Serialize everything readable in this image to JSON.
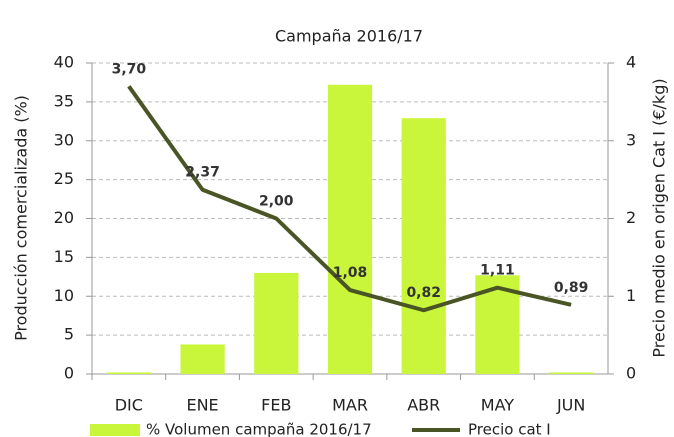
{
  "chart_data": {
    "type": "bar_line",
    "title": "Campaña 2016/17",
    "y_label": "Producción comercializada (%)",
    "y2_label": "Precio medio en origen Cat I (€/kg)",
    "categories": [
      "DIC",
      "ENE",
      "FEB",
      "MAR",
      "ABR",
      "MAY",
      "JUN"
    ],
    "series": [
      {
        "name": "% Volumen campaña 2016/17",
        "type": "bar",
        "color": "#c9f53b",
        "values": [
          0.2,
          3.8,
          13,
          37.2,
          32.9,
          12.7,
          0.2
        ]
      },
      {
        "name": "Precio cat I",
        "type": "line",
        "axis": "y2",
        "color": "#4a5526",
        "values": [
          3.7,
          2.37,
          2.0,
          1.08,
          0.82,
          1.11,
          0.89
        ],
        "value_labels": [
          "3,70",
          "2,37",
          "2,00",
          "1,08",
          "0,82",
          "1,11",
          "0,89"
        ]
      }
    ],
    "ylim": [
      0,
      40
    ],
    "yticks": [
      0,
      5,
      10,
      15,
      20,
      25,
      30,
      35,
      40
    ],
    "y2lim": [
      0,
      4
    ],
    "y2ticks": [
      0,
      1,
      2,
      3,
      4
    ],
    "grid": true,
    "legend": "bottom"
  }
}
